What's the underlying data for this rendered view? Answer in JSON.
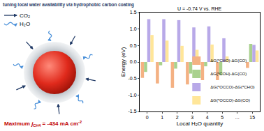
{
  "chart_data": {
    "type": "bar",
    "title": "U = -0.74 V vs. RHE",
    "x_label": "Local H₂O quantity",
    "y_label": "Energy (eV)",
    "categories": [
      "0",
      "1",
      "2",
      "3",
      "4",
      "5",
      "...",
      "15"
    ],
    "series": [
      {
        "name": "ΔG(*CHO)-ΔG(CO)",
        "color": "#f4b183",
        "values": [
          -0.48,
          -0.65,
          -0.78,
          -0.68,
          -0.55,
          -0.55,
          null,
          -0.18
        ]
      },
      {
        "name": "ΔG(*COH)-ΔG(CO)",
        "color": "#a9d18e",
        "values": [
          -0.3,
          -0.1,
          -0.2,
          -0.35,
          -0.13,
          -0.4,
          null,
          0.55
        ]
      },
      {
        "name": "ΔG(*OCCO)-ΔG(*CHO)",
        "color": "#b8a9e8",
        "values": [
          1.3,
          1.3,
          1.27,
          1.05,
          1.08,
          0.72,
          null,
          0.52
        ]
      },
      {
        "name": "ΔG(*OCCO)-ΔG(CO)",
        "color": "#ffe699",
        "values": [
          0.82,
          0.65,
          0.49,
          0.37,
          0.53,
          0.17,
          null,
          0.35
        ]
      }
    ],
    "ylim": [
      -1.5,
      1.5
    ],
    "yticks": [
      {
        "value": -1.5,
        "label": "-1.5"
      },
      {
        "value": -1,
        "label": "-1.0"
      },
      {
        "value": -0.5,
        "label": "-0.5"
      },
      {
        "value": 0,
        "label": "0.0"
      },
      {
        "value": 0.5,
        "label": "0.5"
      },
      {
        "value": 1,
        "label": "1.0"
      },
      {
        "value": 1.5,
        "label": "1.5"
      }
    ],
    "grid": false,
    "legend": "bottom right"
  },
  "diagram": {
    "caption": "tuning local water availability ",
    "caption_italic": "via",
    "caption_end": " hydrophobic carbon coating",
    "legend": [
      {
        "label": "CO₂",
        "color": "#1f3864",
        "line_style": "solid"
      },
      {
        "label": "H₂O",
        "color": "#4a90d9",
        "line_style": "wavy"
      }
    ],
    "max_prefix": "Maximum ",
    "max_symbol": "j",
    "max_symbol_sub": "CH4",
    "max_middle": " = -434 mA cm",
    "max_sup": "-2"
  }
}
